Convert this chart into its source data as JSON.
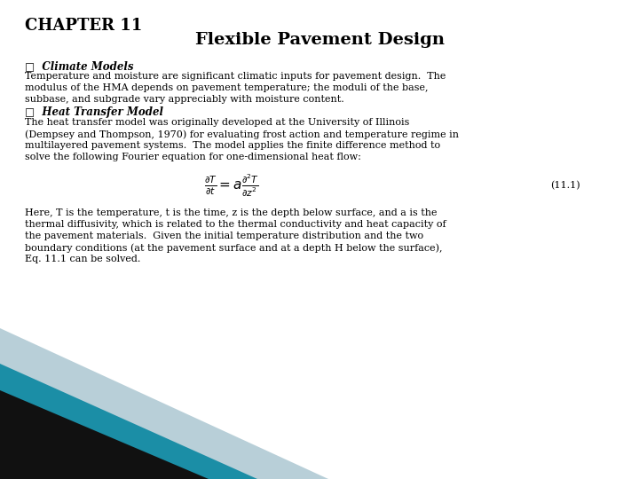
{
  "title_line1": "CHAPTER 11",
  "title_line2": "Flexible Pavement Design",
  "bullet1_label": "□  Climate Models",
  "bullet2_label": "□  Heat Transfer Model",
  "bullet1_lines": [
    "Temperature and moisture are significant climatic inputs for pavement design.  The",
    "modulus of the HMA depends on pavement temperature; the moduli of the base,",
    "subbase, and subgrade vary appreciably with moisture content."
  ],
  "bullet2_lines": [
    "The heat transfer model was originally developed at the University of Illinois",
    "(Dempsey and Thompson, 1970) for evaluating frost action and temperature regime in",
    "multilayered pavement systems.  The model applies the finite difference method to",
    "solve the following Fourier equation for one-dimensional heat flow:"
  ],
  "eq_label": "(11.1)",
  "after_lines": [
    "Here, T is the temperature, t is the time, z is the depth below surface, and a is the",
    "thermal diffusivity, which is related to the thermal conductivity and heat capacity of",
    "the pavement materials.  Given the initial temperature distribution and the two",
    "boundary conditions (at the pavement surface and at a depth H below the surface),",
    "Eq. 11.1 can be solved."
  ],
  "bg_color": "#ffffff",
  "text_color": "#000000",
  "teal_color": "#1b8ea6",
  "dark_color": "#111111",
  "light_blue": "#b8cfd8"
}
